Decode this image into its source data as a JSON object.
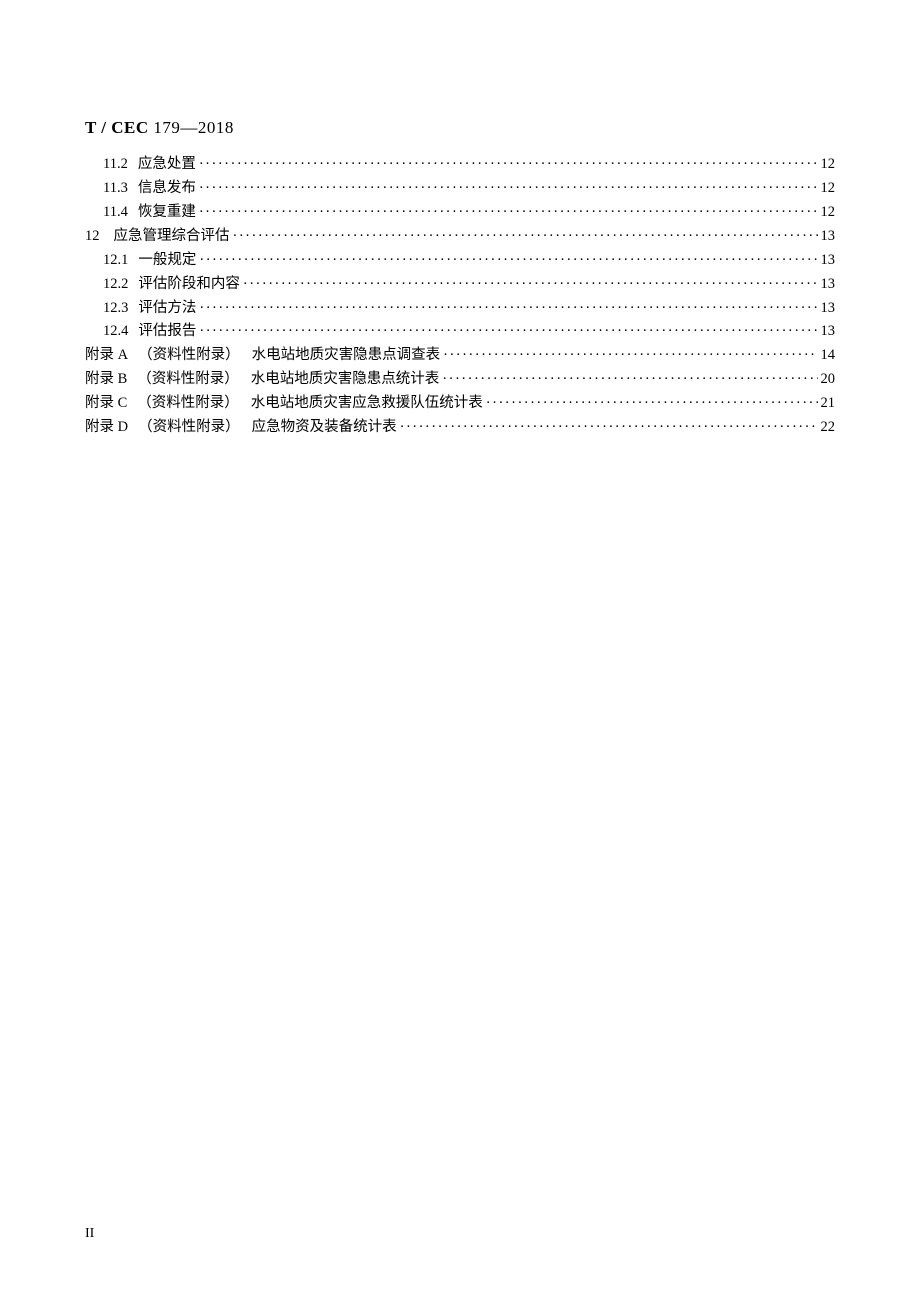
{
  "header": {
    "prefix": "T / CEC ",
    "number": "179",
    "dash": "—",
    "year": "2018"
  },
  "toc": [
    {
      "type": "sub",
      "num": "11.2",
      "label": "应急处置",
      "page": "12"
    },
    {
      "type": "sub",
      "num": "11.3",
      "label": "信息发布",
      "page": "12"
    },
    {
      "type": "sub",
      "num": "11.4",
      "label": "恢复重建",
      "page": "12"
    },
    {
      "type": "main",
      "num": "12",
      "label": "应急管理综合评估",
      "page": "13"
    },
    {
      "type": "sub",
      "num": "12.1",
      "label": "一般规定",
      "page": "13"
    },
    {
      "type": "sub",
      "num": "12.2",
      "label": "评估阶段和内容",
      "page": "13"
    },
    {
      "type": "sub",
      "num": "12.3",
      "label": "评估方法",
      "page": "13"
    },
    {
      "type": "sub",
      "num": "12.4",
      "label": "评估报告",
      "page": "13"
    },
    {
      "type": "appendix",
      "letter": "附录 A",
      "note": "（资料性附录）",
      "label": "水电站地质灾害隐患点调查表",
      "page": "14"
    },
    {
      "type": "appendix",
      "letter": "附录 B",
      "note": "（资料性附录）",
      "label": "水电站地质灾害隐患点统计表",
      "page": "20"
    },
    {
      "type": "appendix",
      "letter": "附录 C",
      "note": "（资料性附录）",
      "label": "水电站地质灾害应急救援队伍统计表",
      "page": "21"
    },
    {
      "type": "appendix",
      "letter": "附录 D",
      "note": "（资料性附录）",
      "label": "应急物资及装备统计表",
      "page": "22"
    }
  ],
  "pageNumber": "II"
}
